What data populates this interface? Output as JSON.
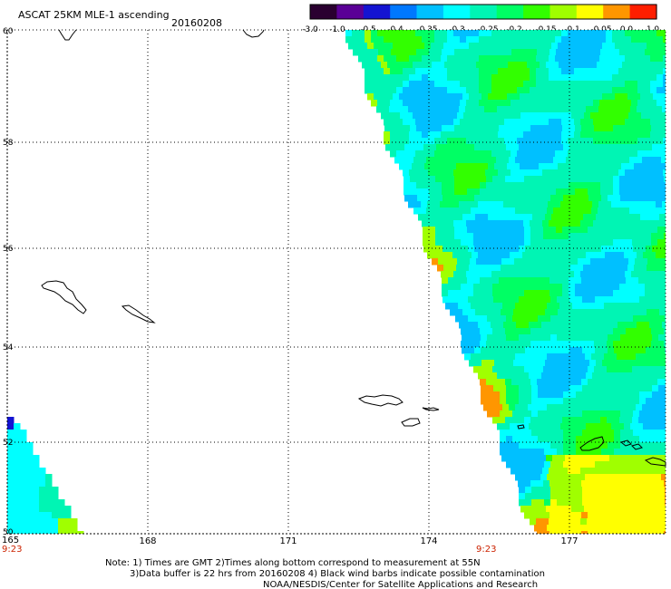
{
  "header": {
    "title": "ASCAT 25KM MLE-1 ascending",
    "date": "20160208"
  },
  "colorbar": {
    "tick_labels": [
      "-3.0",
      "-1.0",
      "-0.5",
      "-0.4",
      "-0.35",
      "-0.3",
      "-0.25",
      "-0.2",
      "-0.15",
      "-0.1",
      "-0.05",
      "0.0",
      "1.0"
    ],
    "colors": [
      "#2a0030",
      "#5a0096",
      "#1414d2",
      "#0078ff",
      "#00c0ff",
      "#00ffff",
      "#00f5b4",
      "#00ff64",
      "#32ff00",
      "#a0ff00",
      "#ffff00",
      "#ff9600",
      "#ff1e00"
    ]
  },
  "map": {
    "lon_labels": [
      "165",
      "168",
      "171",
      "174",
      "177"
    ],
    "lat_labels": [
      "60",
      "58",
      "56",
      "54",
      "52",
      "50"
    ],
    "time_labels": [
      "9:23",
      "9:23"
    ],
    "time_color": "#cc2200"
  },
  "footer": {
    "line1": "Note: 1) Times are GMT 2)Times along bottom correspond to measurement at 55N",
    "line2": "3)Data buffer is 22 hrs from 20160208 4) Black wind barbs indicate possible contamination",
    "line3": "NOAA/NESDIS/Center for Satellite Applications and Research"
  }
}
